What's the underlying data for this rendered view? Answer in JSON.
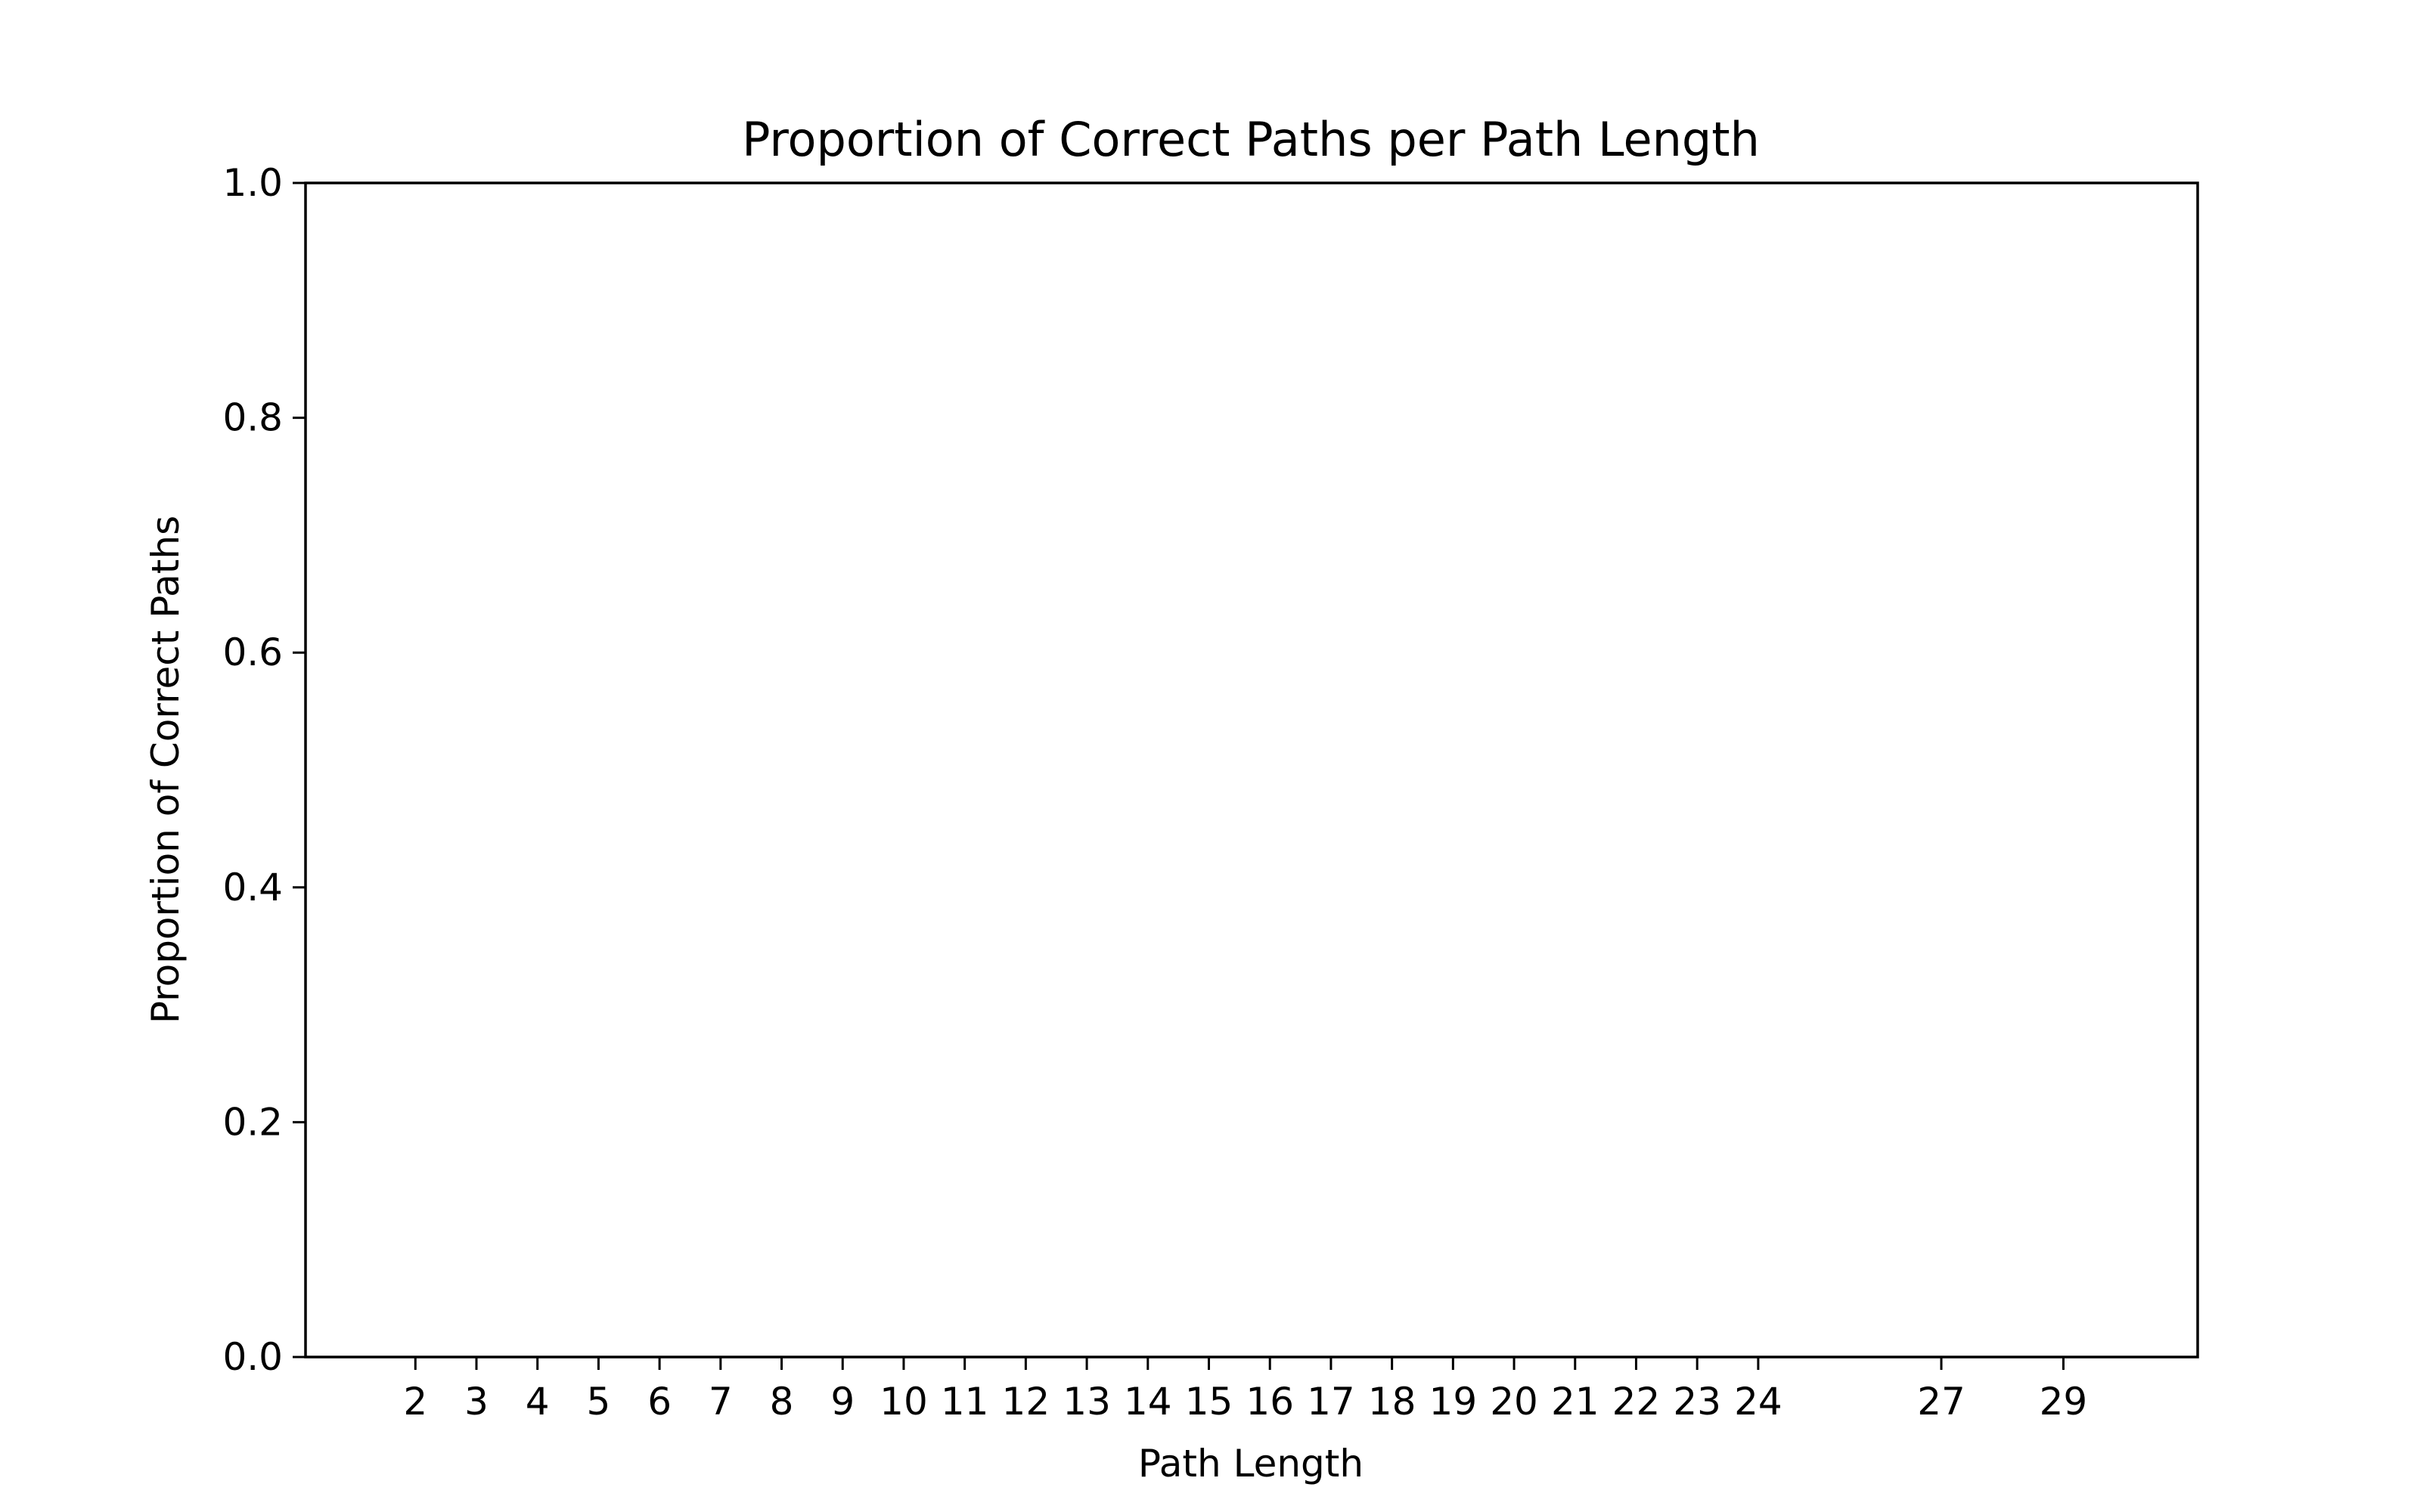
{
  "chart_data": {
    "type": "bar",
    "title": "Proportion of Correct Paths per Path Length",
    "xlabel": "Path Length",
    "ylabel": "Proportion of Correct Paths",
    "categories": [
      2,
      3,
      4,
      5,
      6,
      7,
      8,
      9,
      10,
      11,
      12,
      13,
      14,
      15,
      16,
      17,
      18,
      19,
      20,
      21,
      22,
      23,
      24,
      27,
      29
    ],
    "values": [
      0,
      0,
      0,
      0,
      0,
      0,
      0,
      0,
      0,
      0,
      0,
      0,
      0,
      0,
      0,
      0,
      0,
      0,
      0,
      0,
      0,
      0,
      0,
      0,
      0
    ],
    "xlim": [
      0.2,
      31.2
    ],
    "ylim": [
      0,
      1.0
    ],
    "yticks": [
      0.0,
      0.2,
      0.4,
      0.6,
      0.8,
      1.0
    ],
    "ytick_labels": [
      "0.0",
      "0.2",
      "0.4",
      "0.6",
      "0.8",
      "1.0"
    ],
    "grid": false,
    "colors": {
      "axes": "#000000",
      "bar": "#1f77b4",
      "background": "#ffffff"
    }
  }
}
